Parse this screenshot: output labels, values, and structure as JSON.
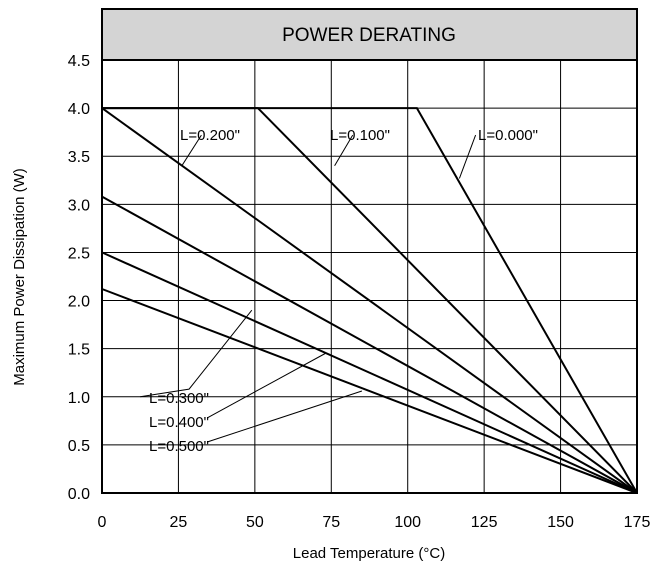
{
  "chart_data": {
    "type": "line",
    "title": "POWER DERATING",
    "xlabel": "Lead Temperature (°C)",
    "ylabel": "Maximum Power Dissipation (W)",
    "xlim": [
      0,
      175
    ],
    "ylim": [
      0,
      4.5
    ],
    "x_ticks": [
      "0",
      "25",
      "50",
      "75",
      "100",
      "125",
      "150",
      "175"
    ],
    "y_ticks": [
      "0.0",
      "0.5",
      "1.0",
      "1.5",
      "2.0",
      "2.5",
      "3.0",
      "3.5",
      "4.0",
      "4.5"
    ],
    "grid": true,
    "series": [
      {
        "name": "L=0.000\"",
        "points": [
          [
            0,
            4.0
          ],
          [
            103,
            4.0
          ],
          [
            175,
            0
          ]
        ]
      },
      {
        "name": "L=0.100\"",
        "points": [
          [
            0,
            4.0
          ],
          [
            51,
            4.0
          ],
          [
            175,
            0
          ]
        ]
      },
      {
        "name": "L=0.200\"",
        "points": [
          [
            0,
            4.0
          ],
          [
            175,
            0
          ]
        ]
      },
      {
        "name": "L=0.300\"",
        "points": [
          [
            0,
            3.08
          ],
          [
            175,
            0
          ]
        ]
      },
      {
        "name": "L=0.400\"",
        "points": [
          [
            0,
            2.5
          ],
          [
            175,
            0
          ]
        ]
      },
      {
        "name": "L=0.500\"",
        "points": [
          [
            0,
            2.12
          ],
          [
            175,
            0
          ]
        ]
      }
    ],
    "annotations": [
      {
        "text": "L=0.200\"",
        "series": 2
      },
      {
        "text": "L=0.100\"",
        "series": 1
      },
      {
        "text": "L=0.000\"",
        "series": 0
      },
      {
        "text": "L=0.300\"",
        "series": 3
      },
      {
        "text": "L=0.400\"",
        "series": 4
      },
      {
        "text": "L=0.500\"",
        "series": 5
      }
    ]
  }
}
